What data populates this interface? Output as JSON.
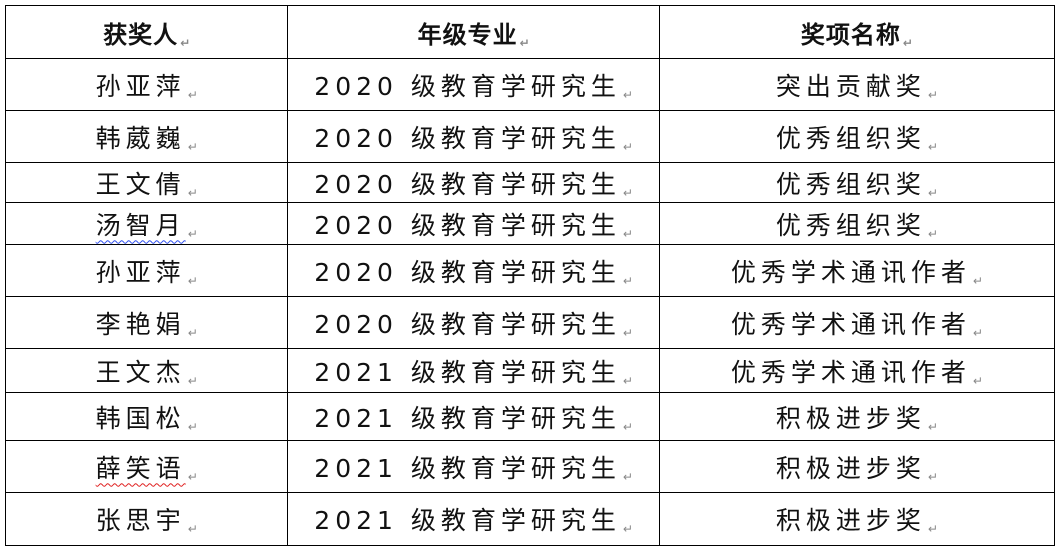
{
  "table": {
    "headers": [
      "获奖人",
      "年级专业",
      "奖项名称"
    ],
    "rows": [
      {
        "name": "孙亚萍",
        "grade": "2020 级教育学研究生",
        "award": "突出贡献奖"
      },
      {
        "name": "韩葳巍",
        "grade": "2020 级教育学研究生",
        "award": "优秀组织奖"
      },
      {
        "name": "王文倩",
        "grade": "2020 级教育学研究生",
        "award": "优秀组织奖"
      },
      {
        "name": "汤智月",
        "grade": "2020 级教育学研究生",
        "award": "优秀组织奖",
        "spell": "blue"
      },
      {
        "name": "孙亚萍",
        "grade": "2020 级教育学研究生",
        "award": "优秀学术通讯作者"
      },
      {
        "name": "李艳娟",
        "grade": "2020 级教育学研究生",
        "award": "优秀学术通讯作者"
      },
      {
        "name": "王文杰",
        "grade": "2021 级教育学研究生",
        "award": "优秀学术通讯作者"
      },
      {
        "name": "韩国松",
        "grade": "2021 级教育学研究生",
        "award": "积极进步奖"
      },
      {
        "name": "薛笑语",
        "grade": "2021 级教育学研究生",
        "award": "积极进步奖",
        "spell": "red"
      },
      {
        "name": "张思宇",
        "grade": "2021 级教育学研究生",
        "award": "积极进步奖"
      }
    ]
  },
  "paragraph_mark": "↵",
  "colors": {
    "border": "#000000",
    "grammar_squiggle": "#3050f0",
    "spell_squiggle": "#e02020"
  }
}
